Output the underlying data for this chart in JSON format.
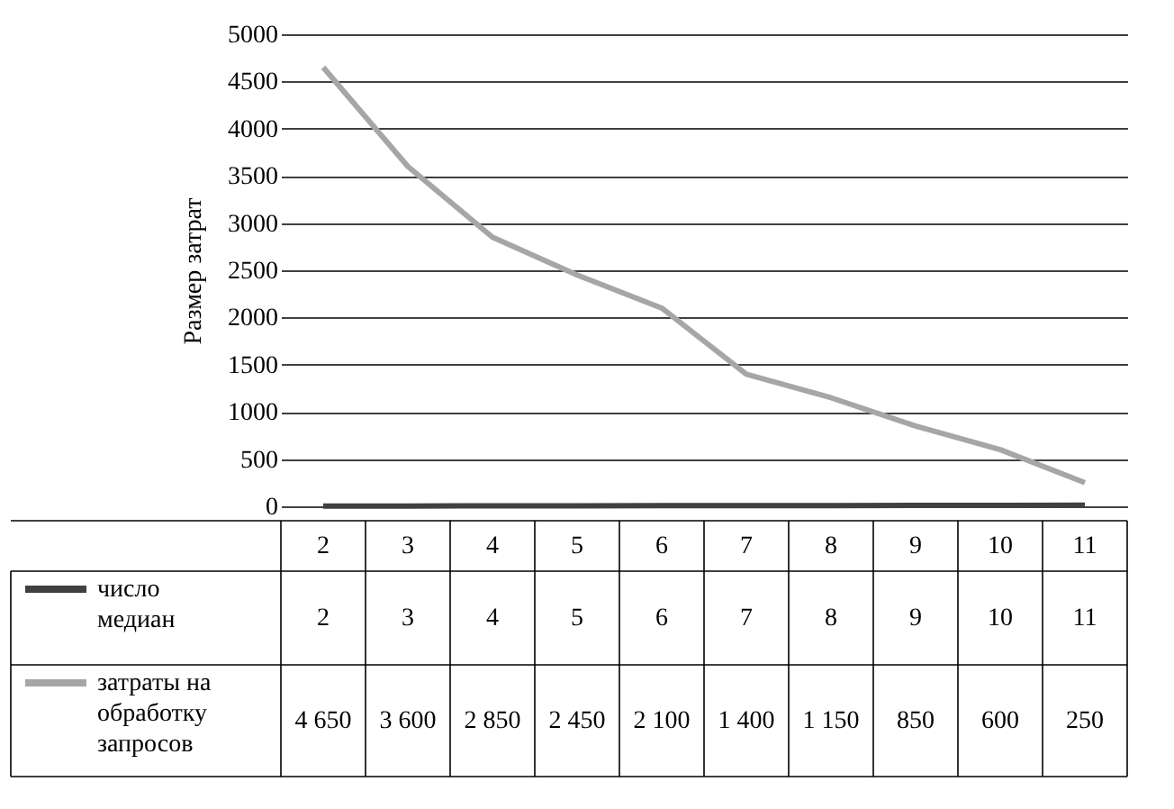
{
  "chart_data": {
    "type": "line",
    "ylabel": "Размер затрат",
    "categories": [
      "2",
      "3",
      "4",
      "5",
      "6",
      "7",
      "8",
      "9",
      "10",
      "11"
    ],
    "series": [
      {
        "name": "число медиан",
        "color": "#404040",
        "values": [
          2,
          3,
          4,
          5,
          6,
          7,
          8,
          9,
          10,
          11
        ],
        "value_labels": [
          "2",
          "3",
          "4",
          "5",
          "6",
          "7",
          "8",
          "9",
          "10",
          "11"
        ]
      },
      {
        "name": "затраты на обработку запросов",
        "color": "#a6a6a6",
        "values": [
          4650,
          3600,
          2850,
          2450,
          2100,
          1400,
          1150,
          850,
          600,
          250
        ],
        "value_labels": [
          "4 650",
          "3 600",
          "2 850",
          "2 450",
          "2 100",
          "1 400",
          "1 150",
          "850",
          "600",
          "250"
        ]
      }
    ],
    "ylim": [
      0,
      5000
    ],
    "yticks": [
      0,
      500,
      1000,
      1500,
      2000,
      2500,
      3000,
      3500,
      4000,
      4500,
      5000
    ],
    "grid": "y",
    "legend": "bottom",
    "marker": "none",
    "line_style": "solid"
  }
}
